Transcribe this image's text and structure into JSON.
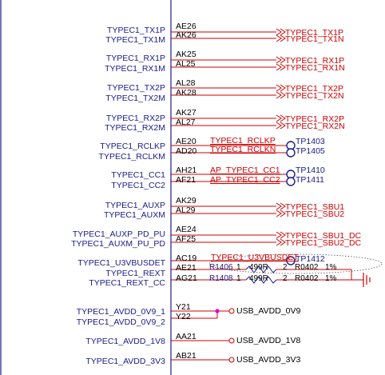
{
  "colors": {
    "wire": "#cc0000",
    "pin_text": "#1a1a8c",
    "body_outline": "#1a1a8c",
    "test_point": "#1a1a8c",
    "junction": "#e000e0",
    "ground": "#cc0000"
  },
  "pins": [
    {
      "name": "TYPEC1_TX1P",
      "ball": "AE26"
    },
    {
      "name": "TYPEC1_TX1M",
      "ball": "AK26"
    },
    {
      "name": "TYPEC1_RX1P",
      "ball": "AK25"
    },
    {
      "name": "TYPEC1_RX1M",
      "ball": "AL25"
    },
    {
      "name": "TYPEC1_TX2P",
      "ball": "AL28"
    },
    {
      "name": "TYPEC1_TX2M",
      "ball": "AK28"
    },
    {
      "name": "TYPEC1_RX2P",
      "ball": "AK27"
    },
    {
      "name": "TYPEC1_RX2M",
      "ball": "AL27"
    },
    {
      "name": "TYPEC1_RCLKP",
      "ball": "AE20"
    },
    {
      "name": "TYPEC1_RCLKM",
      "ball": "AD20"
    },
    {
      "name": "TYPEC1_CC1",
      "ball": "AH21"
    },
    {
      "name": "TYPEC1_CC2",
      "ball": "AF21"
    },
    {
      "name": "TYPEC1_AUXP",
      "ball": "AK29"
    },
    {
      "name": "TYPEC1_AUXM",
      "ball": "AL29"
    },
    {
      "name": "TYPEC1_AUXP_PD_PU",
      "ball": "AE24"
    },
    {
      "name": "TYPEC1_AUXM_PU_PD",
      "ball": "AF25"
    },
    {
      "name": "TYPEC1_U3VBUSDET",
      "ball": "AC19"
    },
    {
      "name": "TYPEC1_REXT",
      "ball": "AE21"
    },
    {
      "name": "TYPEC1_REXT_CC",
      "ball": "AG21"
    },
    {
      "name": "TYPEC1_AVDD_0V9_1",
      "ball": "Y21"
    },
    {
      "name": "TYPEC1_AVDD_0V9_2",
      "ball": "Y22"
    },
    {
      "name": "TYPEC1_AVDD_1V8",
      "ball": "AA21"
    },
    {
      "name": "TYPEC1_AVDD_3V3",
      "ball": "AB21"
    }
  ],
  "offpage_nets": [
    "TYPEC1_TX1P",
    "TYPEC1_TX1N",
    "TYPEC1_RX1P",
    "TYPEC1_RX1N",
    "TYPEC1_TX2P",
    "TYPEC1_TX2N",
    "TYPEC1_RX2P",
    "TYPEC1_RX2N",
    "TYPEC1_SBU1",
    "TYPEC1_SBU2",
    "TYPEC1_SBU1_DC",
    "TYPEC1_SBU2_DC"
  ],
  "local_nets": {
    "rclkp": "TYPEC1_RCLKP",
    "rclkn": "TYPEC1_RCLKN",
    "cc1": "AP_TYPEC1_CC1",
    "cc2": "AP_TYPEC1_CC2",
    "vbusdet": "TYPEC1_U3VBUSDET"
  },
  "test_points": [
    "TP1403",
    "TP1405",
    "TP1410",
    "TP1411",
    "TP1412"
  ],
  "resistors": [
    {
      "ref": "R1406",
      "pin1": "1",
      "value": "499R",
      "pin2": "2",
      "package": "R0402",
      "tolerance": "1%"
    },
    {
      "ref": "R1408",
      "pin1": "1",
      "value": "499R",
      "pin2": "2",
      "package": "R0402",
      "tolerance": "1%"
    }
  ],
  "power_nets": [
    "USB_AVDD_0V9",
    "USB_AVDD_1V8",
    "USB_AVDD_3V3"
  ]
}
